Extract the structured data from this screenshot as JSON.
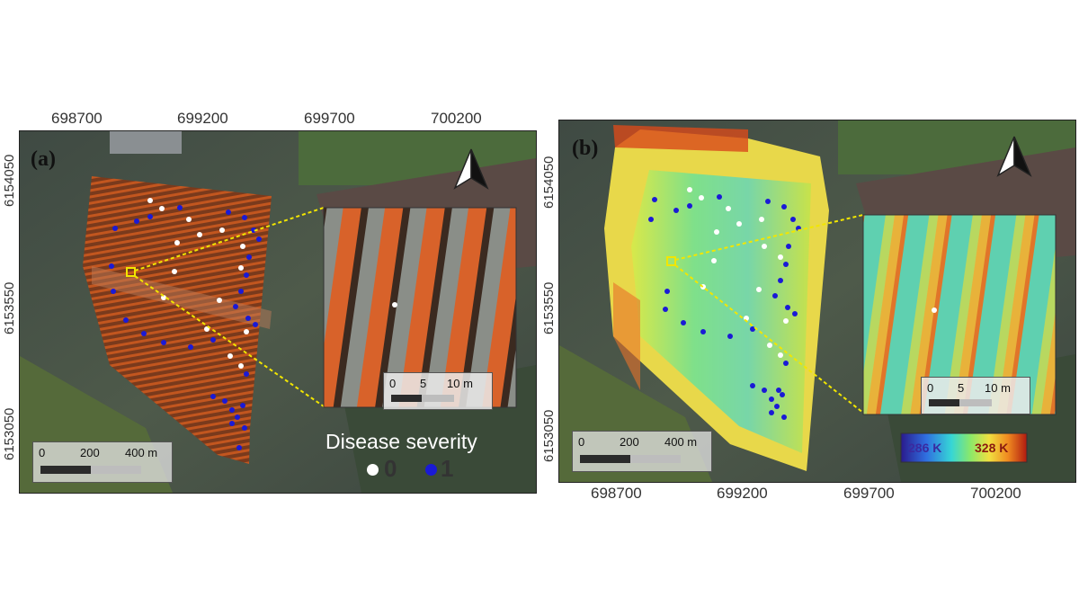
{
  "panel_a": {
    "label": "(a)",
    "x_ticks": [
      "698700",
      "699200",
      "699700",
      "700200"
    ],
    "y_ticks": [
      "6154050",
      "6153550",
      "6153050"
    ],
    "scalebar": {
      "labels": [
        "0",
        "200",
        "400 m"
      ]
    },
    "inset_scalebar": {
      "labels": [
        "0",
        "5",
        "10 m"
      ]
    },
    "legend": {
      "title": "Disease severity",
      "items": [
        {
          "value": "0",
          "color": "#ffffff"
        },
        {
          "value": "1",
          "color": "#1a1ad6"
        }
      ]
    },
    "north_arrow_icon": "north-arrow-icon"
  },
  "panel_b": {
    "label": "(b)",
    "x_ticks": [
      "698700",
      "699200",
      "699700",
      "700200"
    ],
    "y_ticks": [
      "6154050",
      "6153550",
      "6153050"
    ],
    "scalebar": {
      "labels": [
        "0",
        "200",
        "400 m"
      ]
    },
    "inset_scalebar": {
      "labels": [
        "0",
        "5",
        "10 m"
      ]
    },
    "colorbar": {
      "min_label": "286 K",
      "max_label": "328 K"
    },
    "north_arrow_icon": "north-arrow-icon"
  },
  "colors": {
    "healthy_point": "#ffffff",
    "diseased_point": "#1a1ad6",
    "highlight_box": "#f2e600",
    "callout_line": "#f2e600"
  }
}
